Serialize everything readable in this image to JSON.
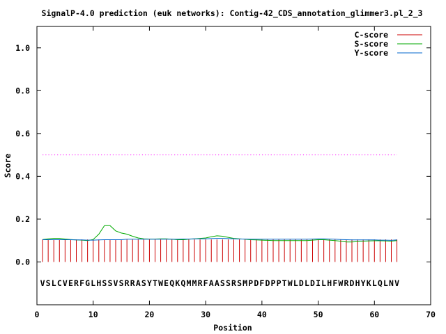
{
  "chart_data": {
    "type": "line",
    "title": "SignalP-4.0 prediction (euk networks): Contig-42_CDS_annotation_glimmer3.pl_2_3",
    "xlabel": "Position",
    "ylabel": "Score",
    "xlim": [
      0,
      70
    ],
    "ylim": [
      -0.2,
      1.1
    ],
    "xticks": [
      0,
      10,
      20,
      30,
      40,
      50,
      60,
      70
    ],
    "xtick_labels": [
      "0",
      "10",
      "20",
      "30",
      "40",
      "50",
      "60",
      "70"
    ],
    "yticks": [
      0.0,
      0.2,
      0.4,
      0.6,
      0.8,
      1.0
    ],
    "ytick_labels": [
      "0.0",
      "0.2",
      "0.4",
      "0.6",
      "0.8",
      "1.0"
    ],
    "grid": false,
    "legend_position": "top-right",
    "threshold": {
      "value": 0.5,
      "x_range": [
        1,
        64
      ],
      "color": "#ff00ff",
      "style": "dotted"
    },
    "sequence": "VSLCVERFGLHSSVSRRASYTWEQKQMMRFAASSRSMPDFDPPTWLDLDILHFWRDHYKLQLNV",
    "sequence_y": -0.1,
    "series": [
      {
        "name": "C-score",
        "color": "#cc0000",
        "style": "impulse",
        "x": [
          1,
          2,
          3,
          4,
          5,
          6,
          7,
          8,
          9,
          10,
          11,
          12,
          13,
          14,
          15,
          16,
          17,
          18,
          19,
          20,
          21,
          22,
          23,
          24,
          25,
          26,
          27,
          28,
          29,
          30,
          31,
          32,
          33,
          34,
          35,
          36,
          37,
          38,
          39,
          40,
          41,
          42,
          43,
          44,
          45,
          46,
          47,
          48,
          49,
          50,
          51,
          52,
          53,
          54,
          55,
          56,
          57,
          58,
          59,
          60,
          61,
          62,
          63,
          64
        ],
        "values": [
          0.105,
          0.105,
          0.105,
          0.105,
          0.105,
          0.105,
          0.105,
          0.105,
          0.105,
          0.105,
          0.105,
          0.105,
          0.105,
          0.105,
          0.105,
          0.105,
          0.105,
          0.105,
          0.105,
          0.105,
          0.105,
          0.105,
          0.105,
          0.105,
          0.105,
          0.105,
          0.105,
          0.105,
          0.105,
          0.105,
          0.105,
          0.105,
          0.105,
          0.105,
          0.105,
          0.105,
          0.105,
          0.105,
          0.105,
          0.105,
          0.105,
          0.105,
          0.105,
          0.105,
          0.105,
          0.105,
          0.105,
          0.105,
          0.105,
          0.105,
          0.105,
          0.105,
          0.105,
          0.105,
          0.105,
          0.105,
          0.105,
          0.105,
          0.105,
          0.105,
          0.105,
          0.105,
          0.105,
          0.105
        ]
      },
      {
        "name": "S-score",
        "color": "#00aa00",
        "style": "line",
        "x": [
          1,
          2,
          3,
          4,
          5,
          6,
          7,
          8,
          9,
          10,
          11,
          12,
          13,
          14,
          15,
          16,
          17,
          18,
          19,
          20,
          21,
          22,
          23,
          24,
          25,
          26,
          27,
          28,
          29,
          30,
          31,
          32,
          33,
          34,
          35,
          36,
          37,
          38,
          39,
          40,
          41,
          42,
          43,
          44,
          45,
          46,
          47,
          48,
          49,
          50,
          51,
          52,
          53,
          54,
          55,
          56,
          57,
          58,
          59,
          60,
          61,
          62,
          63,
          64
        ],
        "values": [
          0.105,
          0.108,
          0.11,
          0.11,
          0.107,
          0.105,
          0.103,
          0.102,
          0.1,
          0.105,
          0.13,
          0.17,
          0.17,
          0.145,
          0.135,
          0.13,
          0.12,
          0.112,
          0.108,
          0.107,
          0.107,
          0.108,
          0.108,
          0.106,
          0.104,
          0.104,
          0.106,
          0.108,
          0.11,
          0.112,
          0.118,
          0.122,
          0.12,
          0.115,
          0.11,
          0.108,
          0.106,
          0.104,
          0.103,
          0.102,
          0.101,
          0.1,
          0.1,
          0.1,
          0.1,
          0.1,
          0.1,
          0.1,
          0.102,
          0.104,
          0.104,
          0.102,
          0.1,
          0.097,
          0.093,
          0.093,
          0.095,
          0.097,
          0.098,
          0.099,
          0.099,
          0.098,
          0.097,
          0.1
        ]
      },
      {
        "name": "Y-score",
        "color": "#0066cc",
        "style": "line",
        "x": [
          1,
          2,
          3,
          4,
          5,
          6,
          7,
          8,
          9,
          10,
          11,
          12,
          13,
          14,
          15,
          16,
          17,
          18,
          19,
          20,
          21,
          22,
          23,
          24,
          25,
          26,
          27,
          28,
          29,
          30,
          31,
          32,
          33,
          34,
          35,
          36,
          37,
          38,
          39,
          40,
          41,
          42,
          43,
          44,
          45,
          46,
          47,
          48,
          49,
          50,
          51,
          52,
          53,
          54,
          55,
          56,
          57,
          58,
          59,
          60,
          61,
          62,
          63,
          64
        ],
        "values": [
          0.104,
          0.104,
          0.104,
          0.104,
          0.104,
          0.104,
          0.103,
          0.103,
          0.102,
          0.102,
          0.103,
          0.104,
          0.104,
          0.104,
          0.104,
          0.106,
          0.106,
          0.106,
          0.106,
          0.106,
          0.106,
          0.106,
          0.106,
          0.106,
          0.106,
          0.107,
          0.107,
          0.108,
          0.108,
          0.108,
          0.109,
          0.11,
          0.11,
          0.109,
          0.108,
          0.107,
          0.107,
          0.106,
          0.106,
          0.106,
          0.106,
          0.106,
          0.106,
          0.106,
          0.106,
          0.106,
          0.106,
          0.106,
          0.107,
          0.108,
          0.108,
          0.107,
          0.106,
          0.105,
          0.104,
          0.103,
          0.103,
          0.103,
          0.103,
          0.103,
          0.102,
          0.102,
          0.101,
          0.103
        ]
      }
    ]
  }
}
